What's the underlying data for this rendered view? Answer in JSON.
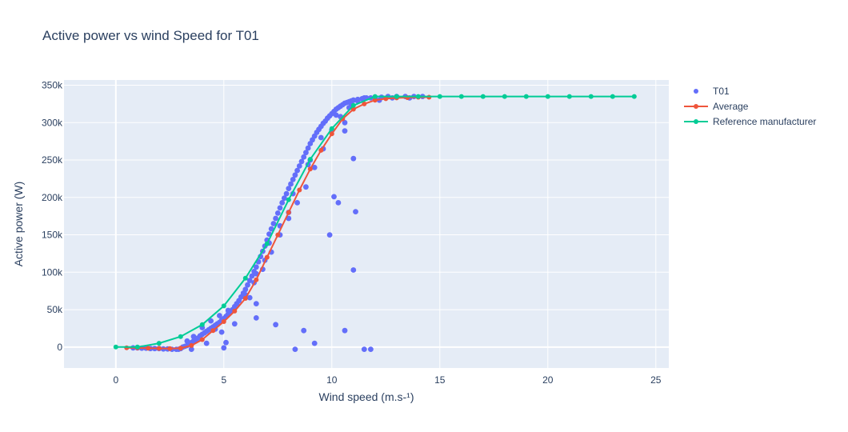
{
  "chart_data": {
    "type": "scatter",
    "title": "Active power vs wind Speed for T01",
    "xlabel": "Wind speed (m.s-¹)",
    "ylabel": "Active power (W)",
    "xlim": [
      -2.4,
      25.6
    ],
    "ylim": [
      -28000,
      357000
    ],
    "grid": true,
    "legend_position": "top-right",
    "x_ticks": [
      {
        "value": 0,
        "label": "0"
      },
      {
        "value": 5,
        "label": "5"
      },
      {
        "value": 10,
        "label": "10"
      },
      {
        "value": 15,
        "label": "15"
      },
      {
        "value": 20,
        "label": "20"
      },
      {
        "value": 25,
        "label": "25"
      }
    ],
    "y_ticks": [
      {
        "value": 0,
        "label": "0"
      },
      {
        "value": 50000,
        "label": "50k"
      },
      {
        "value": 100000,
        "label": "100k"
      },
      {
        "value": 150000,
        "label": "150k"
      },
      {
        "value": 200000,
        "label": "200k"
      },
      {
        "value": 250000,
        "label": "250k"
      },
      {
        "value": 300000,
        "label": "300k"
      },
      {
        "value": 350000,
        "label": "350k"
      }
    ],
    "series": [
      {
        "name": "T01",
        "mode": "markers",
        "color": "#636efa",
        "x": [
          0.8,
          1.0,
          1.2,
          1.4,
          1.6,
          1.8,
          2.0,
          2.2,
          2.4,
          2.6,
          2.8,
          3.0,
          3.1,
          3.2,
          3.3,
          3.4,
          3.5,
          3.6,
          3.7,
          3.8,
          3.9,
          4.0,
          4.1,
          4.2,
          4.3,
          4.4,
          4.5,
          4.6,
          4.7,
          4.8,
          4.9,
          5.0,
          5.1,
          5.2,
          5.3,
          5.4,
          5.5,
          5.6,
          5.7,
          5.8,
          5.9,
          6.0,
          6.1,
          6.2,
          6.3,
          6.4,
          6.5,
          6.6,
          6.7,
          6.8,
          6.9,
          7.0,
          7.1,
          7.2,
          7.3,
          7.4,
          7.5,
          7.6,
          7.7,
          7.8,
          7.9,
          8.0,
          8.1,
          8.2,
          8.3,
          8.4,
          8.5,
          8.6,
          8.7,
          8.8,
          8.9,
          9.0,
          9.1,
          9.2,
          9.3,
          9.4,
          9.5,
          9.6,
          9.7,
          9.8,
          9.9,
          10.0,
          10.1,
          10.2,
          10.3,
          10.4,
          10.5,
          10.6,
          10.7,
          10.8,
          10.9,
          11.0,
          11.2,
          11.4,
          11.6,
          11.8,
          12.0,
          12.3,
          12.6,
          13.0,
          13.4,
          13.8,
          14.2,
          3.3,
          3.6,
          4.0,
          4.4,
          4.8,
          5.2,
          5.6,
          6.0,
          6.4,
          6.8,
          7.2,
          7.6,
          8.0,
          8.4,
          8.8,
          9.2,
          9.6,
          10.0,
          10.4,
          10.8,
          11.2,
          3.5,
          4.2,
          4.9,
          5.5,
          6.2,
          6.9,
          7.6,
          8.2,
          8.9,
          9.5,
          10.2,
          10.9,
          11.5,
          5.0,
          6.5,
          7.4,
          8.7,
          9.9,
          10.3,
          10.1,
          11.1,
          11.0,
          11.0,
          10.6,
          10.6,
          5.1,
          4.6,
          6.5,
          6.5,
          7.1,
          8.0,
          9.0,
          10.6,
          11.0,
          12.2,
          12.8,
          13.6,
          8.3,
          9.2,
          11.5,
          11.8,
          2.9
        ],
        "y": [
          -1000,
          -1000,
          -1500,
          -1500,
          -2000,
          -2000,
          -2000,
          -2500,
          -2500,
          -3000,
          -3000,
          -2000,
          0,
          1000,
          2000,
          4000,
          6000,
          8000,
          10000,
          12000,
          15000,
          17000,
          19000,
          21000,
          23000,
          25000,
          27000,
          29000,
          31000,
          33000,
          36000,
          38000,
          41000,
          44000,
          47000,
          50000,
          54000,
          58000,
          62000,
          67000,
          72000,
          77000,
          83000,
          89000,
          95000,
          101000,
          107000,
          114000,
          121000,
          128000,
          135000,
          143000,
          151000,
          158000,
          165000,
          172000,
          179000,
          186000,
          193000,
          199000,
          205000,
          212000,
          218000,
          224000,
          230000,
          236000,
          242000,
          248000,
          254000,
          260000,
          266000,
          272000,
          277000,
          282000,
          287000,
          291000,
          295000,
          299000,
          302000,
          306000,
          309000,
          312000,
          315000,
          318000,
          320000,
          322000,
          324000,
          326000,
          327000,
          328000,
          329000,
          330000,
          331000,
          332000,
          333000,
          333000,
          334000,
          334000,
          335000,
          335000,
          335000,
          335000,
          335000,
          8000,
          14000,
          26000,
          35000,
          42000,
          49000,
          58000,
          70000,
          86000,
          104000,
          127000,
          150000,
          172000,
          193000,
          214000,
          240000,
          265000,
          290000,
          308000,
          320000,
          329000,
          -3000,
          5000,
          20000,
          31000,
          66000,
          116000,
          162000,
          205000,
          244000,
          280000,
          310000,
          325000,
          333000,
          -1000,
          39000,
          30000,
          22000,
          150000,
          193000,
          201000,
          181000,
          103000,
          252000,
          289000,
          22000,
          6000,
          24000,
          58000,
          98000,
          139000,
          180000,
          250000,
          300000,
          330000,
          330000,
          333000,
          333000,
          -3000,
          5000,
          -3000,
          -3000,
          -3000
        ]
      },
      {
        "name": "Average",
        "mode": "lines+markers",
        "color": "#ef553b",
        "x": [
          0.5,
          1.0,
          1.5,
          2.0,
          2.5,
          3.0,
          3.5,
          4.0,
          4.5,
          5.0,
          5.5,
          6.0,
          6.5,
          7.0,
          7.5,
          8.0,
          8.5,
          9.0,
          9.5,
          10.0,
          10.5,
          11.0,
          11.5,
          12.0,
          12.5,
          13.0,
          13.5,
          14.0,
          14.5
        ],
        "y": [
          -1000,
          -1200,
          -1500,
          -1800,
          -2000,
          -1500,
          2000,
          10000,
          22000,
          34000,
          48000,
          65000,
          90000,
          120000,
          150000,
          180000,
          210000,
          238000,
          263000,
          285000,
          305000,
          318000,
          325000,
          330000,
          332000,
          333000,
          333500,
          334000,
          334000
        ]
      },
      {
        "name": "Reference manufacturer",
        "mode": "lines+markers",
        "color": "#00cc96",
        "x": [
          0,
          1,
          2,
          3,
          4,
          5,
          6,
          7,
          8,
          9,
          10,
          11,
          12,
          13,
          14,
          15,
          16,
          17,
          18,
          19,
          20,
          21,
          22,
          23,
          24
        ],
        "y": [
          0,
          0,
          5000,
          14000,
          30000,
          55000,
          92000,
          138000,
          197000,
          251000,
          292000,
          323000,
          335000,
          335000,
          335000,
          335000,
          335000,
          335000,
          335000,
          335000,
          335000,
          335000,
          335000,
          335000,
          335000
        ]
      }
    ]
  }
}
